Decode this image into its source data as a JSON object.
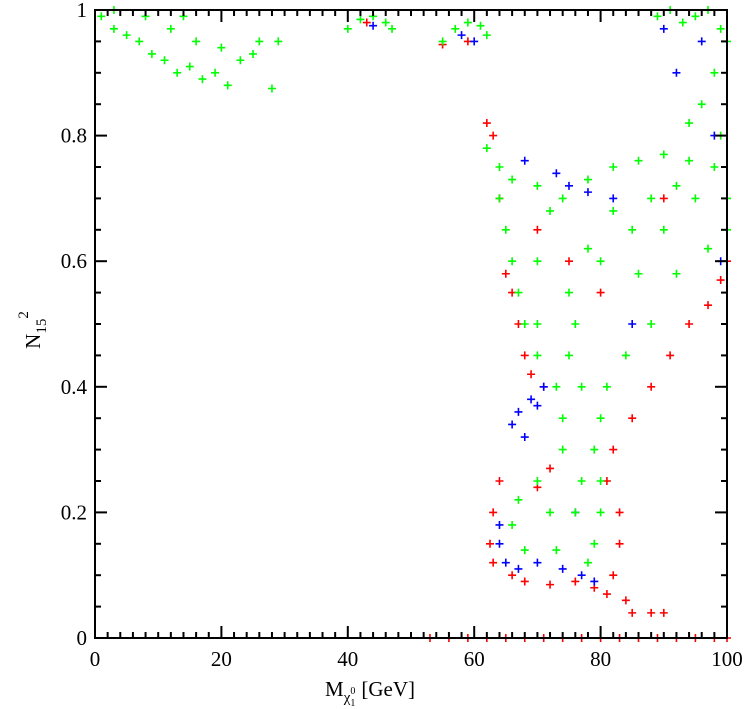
{
  "chart_data": {
    "type": "scatter",
    "x_label": {
      "main": "M",
      "sub": "χ",
      "subsub": "1",
      "sup": "0",
      "unit": "[GeV]"
    },
    "y_label": {
      "main": "N",
      "sub": "15",
      "sup": "2"
    },
    "xlim": [
      0,
      100
    ],
    "ylim": [
      0,
      1
    ],
    "xticks": [
      0,
      20,
      40,
      60,
      80,
      100
    ],
    "yticks": [
      0,
      0.2,
      0.4,
      0.6,
      0.8,
      1
    ],
    "xminorticks": [
      2,
      4,
      6,
      8,
      10,
      12,
      14,
      16,
      18,
      22,
      24,
      26,
      28,
      30,
      32,
      34,
      36,
      38,
      42,
      44,
      46,
      48,
      50,
      52,
      54,
      56,
      58,
      62,
      64,
      66,
      68,
      70,
      72,
      74,
      76,
      78,
      82,
      84,
      86,
      88,
      90,
      92,
      94,
      96,
      98
    ],
    "yminorticks": [
      0.05,
      0.1,
      0.15,
      0.25,
      0.3,
      0.35,
      0.45,
      0.5,
      0.55,
      0.65,
      0.7,
      0.75,
      0.85,
      0.9,
      0.95
    ],
    "marker": "+",
    "series": [
      {
        "color": "#ff0000",
        "x": [
          53,
          56,
          59,
          62,
          65,
          68,
          71,
          74,
          77,
          80,
          83,
          86,
          89,
          92,
          95,
          98,
          100,
          63,
          62.5,
          63,
          64,
          66,
          68,
          72,
          76,
          79,
          81,
          82,
          83,
          84,
          85,
          88,
          90,
          83,
          81,
          82,
          72,
          70,
          62,
          63,
          64,
          65,
          66,
          67,
          68,
          69,
          71,
          85,
          88,
          91,
          94,
          97,
          99,
          100,
          55,
          43,
          59,
          75,
          80,
          70,
          90
        ],
        "y": [
          0,
          0,
          0,
          0,
          0,
          0,
          0,
          0,
          0,
          0,
          0,
          0,
          0,
          0,
          0,
          0,
          0,
          0.2,
          0.15,
          0.12,
          0.25,
          0.1,
          0.09,
          0.085,
          0.09,
          0.08,
          0.07,
          0.1,
          0.15,
          0.06,
          0.04,
          0.04,
          0.04,
          0.2,
          0.25,
          0.3,
          0.27,
          0.24,
          0.82,
          0.8,
          0.7,
          0.58,
          0.55,
          0.5,
          0.45,
          0.42,
          0.4,
          0.35,
          0.4,
          0.45,
          0.5,
          0.53,
          0.57,
          0.6,
          0.945,
          0.98,
          0.95,
          0.6,
          0.55,
          0.65,
          0.7
        ]
      },
      {
        "color": "#0000ff",
        "x": [
          66,
          67,
          68,
          69,
          70,
          71,
          64,
          65,
          67,
          70,
          74,
          77,
          79,
          64,
          75,
          73,
          78,
          82,
          68,
          90,
          92,
          96,
          98,
          58,
          60,
          44,
          99,
          85,
          76
        ],
        "y": [
          0.34,
          0.36,
          0.32,
          0.38,
          0.37,
          0.4,
          0.15,
          0.12,
          0.11,
          0.12,
          0.11,
          0.1,
          0.09,
          0.18,
          0.72,
          0.74,
          0.71,
          0.7,
          0.76,
          0.97,
          0.9,
          0.95,
          0.8,
          0.96,
          0.95,
          0.975,
          0.6,
          0.5,
          0.2
        ]
      },
      {
        "color": "#00ff00",
        "x": [
          1,
          3,
          5,
          7,
          9,
          11,
          13,
          15,
          17,
          19,
          21,
          23,
          25,
          28,
          12,
          16,
          20,
          8,
          14,
          26,
          29,
          3,
          40,
          42,
          44,
          46,
          47,
          55,
          57,
          59,
          61,
          62,
          89,
          91,
          93,
          95,
          97,
          99,
          100,
          98,
          96,
          94,
          99,
          62,
          64,
          66,
          70,
          74,
          78,
          82,
          86,
          90,
          94,
          98,
          100,
          100,
          97,
          92,
          88,
          84,
          81,
          80,
          79,
          80,
          80,
          79,
          78,
          73,
          68,
          66,
          67,
          70,
          74,
          74,
          73,
          70,
          68,
          67,
          66,
          65,
          64,
          70,
          75,
          80,
          85,
          90,
          95,
          75,
          77,
          76,
          72,
          82,
          78,
          86,
          76,
          77,
          72,
          88,
          92,
          70
        ],
        "y": [
          0.99,
          0.97,
          0.96,
          0.95,
          0.93,
          0.92,
          0.9,
          0.91,
          0.89,
          0.9,
          0.88,
          0.92,
          0.93,
          0.875,
          0.97,
          0.95,
          0.94,
          0.99,
          0.99,
          0.95,
          0.95,
          1,
          0.97,
          0.985,
          0.99,
          0.98,
          0.97,
          0.95,
          0.97,
          0.98,
          0.975,
          0.96,
          0.99,
          1,
          0.98,
          0.99,
          1,
          0.97,
          0.95,
          0.9,
          0.85,
          0.82,
          0.8,
          0.78,
          0.75,
          0.73,
          0.72,
          0.7,
          0.73,
          0.75,
          0.76,
          0.77,
          0.76,
          0.75,
          0.7,
          0.65,
          0.62,
          0.58,
          0.5,
          0.45,
          0.4,
          0.35,
          0.3,
          0.25,
          0.2,
          0.15,
          0.12,
          0.14,
          0.14,
          0.18,
          0.22,
          0.25,
          0.3,
          0.35,
          0.4,
          0.45,
          0.5,
          0.55,
          0.6,
          0.65,
          0.7,
          0.6,
          0.55,
          0.6,
          0.65,
          0.65,
          0.7,
          0.45,
          0.4,
          0.5,
          0.68,
          0.68,
          0.62,
          0.58,
          0.2,
          0.25,
          0.2,
          0.7,
          0.72,
          0.5
        ]
      }
    ]
  }
}
